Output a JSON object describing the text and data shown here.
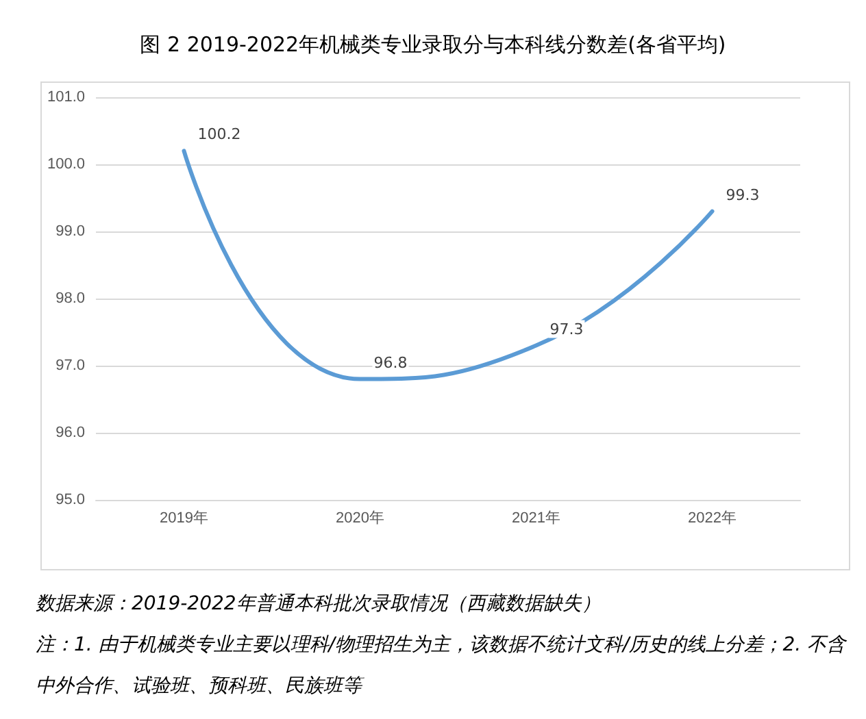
{
  "chart_data": {
    "type": "line",
    "title": "图 2 2019-2022年机械类专业录取分与本科线分数差(各省平均)",
    "categories": [
      "2019年",
      "2020年",
      "2021年",
      "2022年"
    ],
    "values": [
      100.2,
      96.8,
      97.3,
      99.3
    ],
    "color": "#5b9bd5",
    "ylim": [
      95,
      101
    ],
    "yticks": [
      {
        "value": 95,
        "label": "95.0"
      },
      {
        "value": 96,
        "label": "96.0"
      },
      {
        "value": 97,
        "label": "97.0"
      },
      {
        "value": 98,
        "label": "98.0"
      },
      {
        "value": 99,
        "label": "99.0"
      },
      {
        "value": 100,
        "label": "100.0"
      },
      {
        "value": 101,
        "label": "101.0"
      }
    ],
    "grid": "y",
    "data_labels": true,
    "marker": "none",
    "line_style": "solid",
    "annotations": [
      "数据来源：2019-2022年普通本科批次录取情况（西藏数据缺失）",
      "注：1. 由于机械类专业主要以理科/物理招生为主，该数据不统计文科/历史的线上分差；2. 不含中外合作、试验班、预科班、民族班等"
    ]
  }
}
